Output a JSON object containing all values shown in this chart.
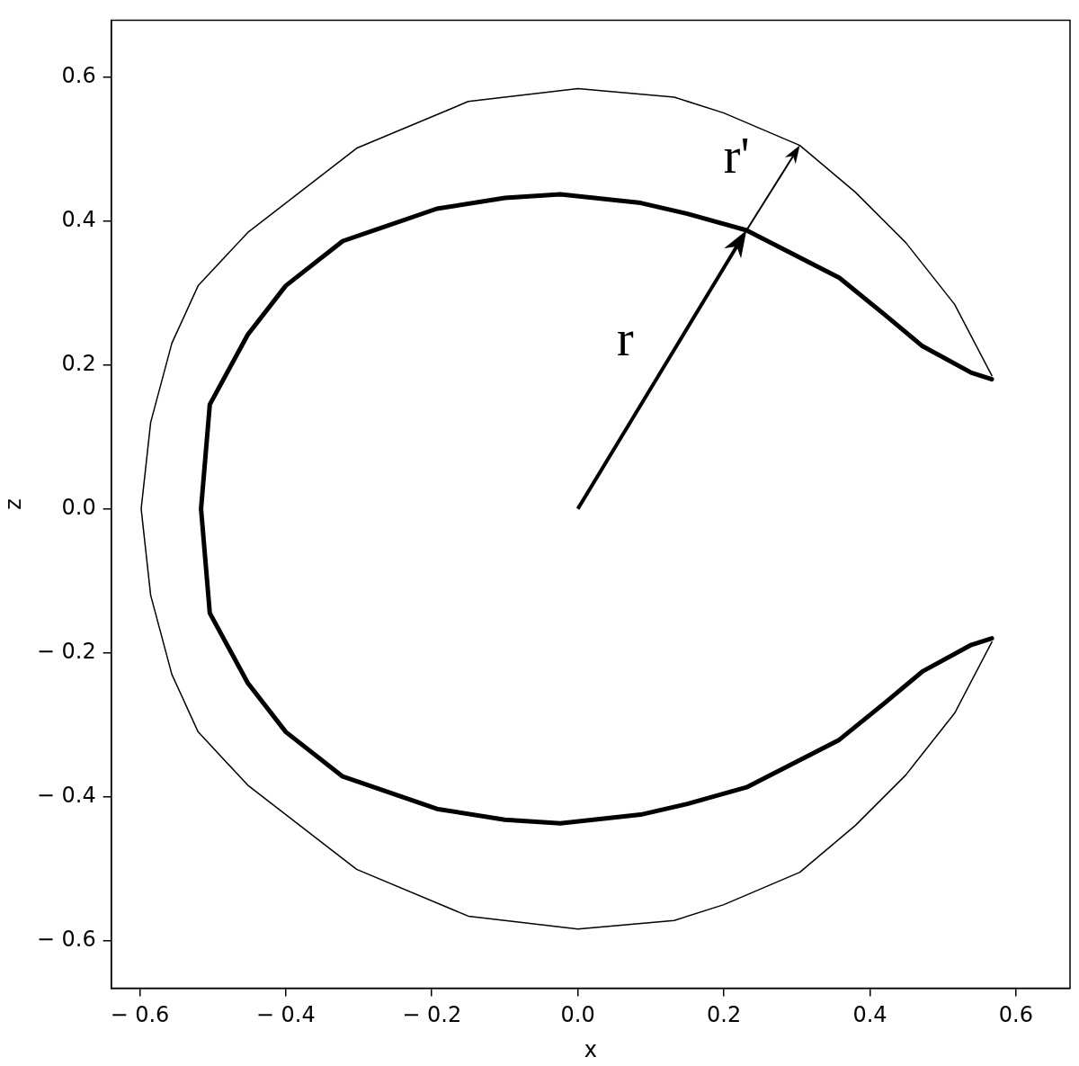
{
  "chart_data": {
    "type": "line",
    "xlabel": "x",
    "ylabel": "z",
    "grid": false,
    "legend": false,
    "marker": "none",
    "line_style": "solid",
    "xlim": [
      -0.639,
      0.674
    ],
    "ylim": [
      -0.666,
      0.679
    ],
    "xticks": [
      {
        "value": -0.6,
        "label": "− 0.6"
      },
      {
        "value": -0.4,
        "label": "− 0.4"
      },
      {
        "value": -0.2,
        "label": "− 0.2"
      },
      {
        "value": 0,
        "label": "0.0"
      },
      {
        "value": 0.2,
        "label": "0.2"
      },
      {
        "value": 0.4,
        "label": "0.4"
      },
      {
        "value": 0.6,
        "label": "0.6"
      }
    ],
    "yticks": [
      {
        "value": -0.6,
        "label": "− 0.6"
      },
      {
        "value": -0.4,
        "label": "− 0.4"
      },
      {
        "value": -0.2,
        "label": "− 0.2"
      },
      {
        "value": 0,
        "label": "0.0"
      },
      {
        "value": 0.2,
        "label": "0.2"
      },
      {
        "value": 0.4,
        "label": "0.4"
      },
      {
        "value": 0.6,
        "label": "0.6"
      }
    ],
    "series": [
      {
        "color": "#000000",
        "x": [
          0.567,
          0.516,
          0.449,
          0.38,
          0.304,
          0.2,
          0.132,
          0,
          -0.15,
          -0.303,
          -0.452,
          -0.52,
          -0.556,
          -0.585,
          -0.598,
          -0.585,
          -0.556,
          -0.52,
          -0.452,
          -0.303,
          -0.15,
          0,
          0.132,
          0.2,
          0.304,
          0.38,
          0.449,
          0.516,
          0.567
        ],
        "values": [
          0.185,
          0.284,
          0.37,
          0.44,
          0.505,
          0.55,
          0.572,
          0.584,
          0.566,
          0.501,
          0.384,
          0.31,
          0.23,
          0.12,
          0,
          -0.12,
          -0.23,
          -0.31,
          -0.384,
          -0.501,
          -0.566,
          -0.584,
          -0.572,
          -0.55,
          -0.505,
          -0.44,
          -0.37,
          -0.284,
          -0.185
        ]
      },
      {
        "color": "#000000",
        "x": [
          0.567,
          0.539,
          0.472,
          0.42,
          0.358,
          0.231,
          0.15,
          0.086,
          -0.024,
          -0.1,
          -0.193,
          -0.322,
          -0.4,
          -0.452,
          -0.504,
          -0.516,
          -0.504,
          -0.452,
          -0.4,
          -0.322,
          -0.193,
          -0.1,
          -0.024,
          0.086,
          0.15,
          0.231,
          0.358,
          0.42,
          0.472,
          0.539,
          0.567
        ],
        "values": [
          0.18,
          0.189,
          0.226,
          0.27,
          0.321,
          0.387,
          0.41,
          0.425,
          0.437,
          0.432,
          0.417,
          0.372,
          0.31,
          0.242,
          0.145,
          0,
          -0.145,
          -0.242,
          -0.31,
          -0.372,
          -0.417,
          -0.432,
          -0.437,
          -0.425,
          -0.41,
          -0.387,
          -0.321,
          -0.27,
          -0.226,
          -0.189,
          -0.18
        ]
      }
    ],
    "annotations": [
      {
        "text": "r",
        "x": 0.231,
        "y": 0.387
      },
      {
        "text": "r'",
        "x": 0.304,
        "y": 0.505
      }
    ]
  }
}
